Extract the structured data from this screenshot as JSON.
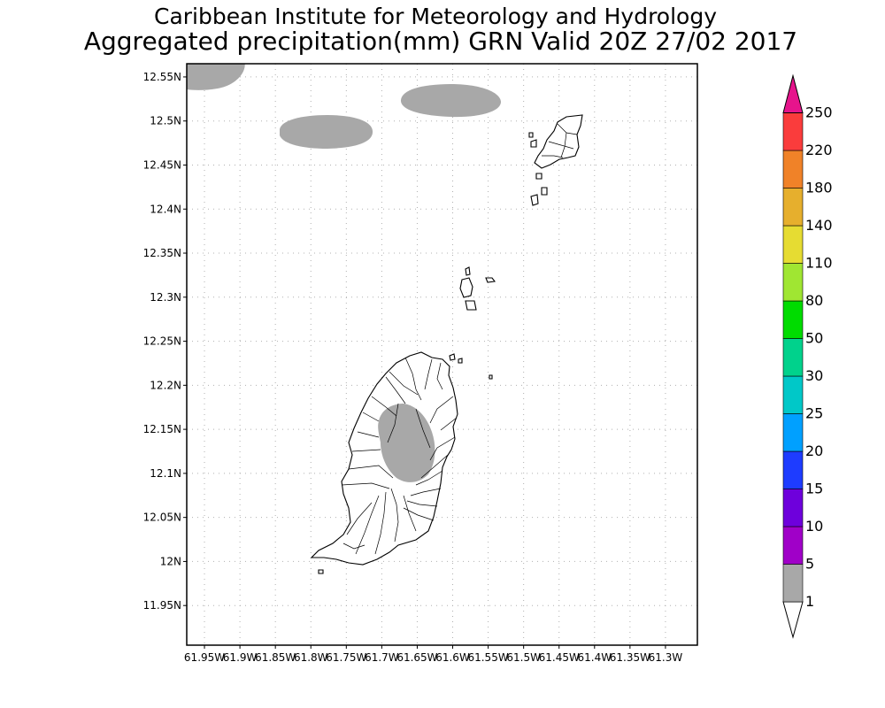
{
  "title": {
    "line1": "Caribbean Institute for Meteorology and Hydrology",
    "line2": "Aggregated precipitation(mm) GRN Valid 20Z 27/02 2017"
  },
  "map": {
    "lon_range": [
      -61.975,
      -61.255
    ],
    "lat_range": [
      11.905,
      12.565
    ],
    "lon_ticks": [
      {
        "value": -61.95,
        "label": "61.95W"
      },
      {
        "value": -61.9,
        "label": "61.9W"
      },
      {
        "value": -61.85,
        "label": "61.85W"
      },
      {
        "value": -61.8,
        "label": "61.8W"
      },
      {
        "value": -61.75,
        "label": "61.75W"
      },
      {
        "value": -61.7,
        "label": "61.7W"
      },
      {
        "value": -61.65,
        "label": "61.65W"
      },
      {
        "value": -61.6,
        "label": "61.6W"
      },
      {
        "value": -61.55,
        "label": "61.55W"
      },
      {
        "value": -61.5,
        "label": "61.5W"
      },
      {
        "value": -61.45,
        "label": "61.45W"
      },
      {
        "value": -61.4,
        "label": "61.4W"
      },
      {
        "value": -61.35,
        "label": "61.35W"
      },
      {
        "value": -61.3,
        "label": "61.3W"
      }
    ],
    "lat_ticks": [
      {
        "value": 12.55,
        "label": "12.55N"
      },
      {
        "value": 12.5,
        "label": "12.5N"
      },
      {
        "value": 12.45,
        "label": "12.45N"
      },
      {
        "value": 12.4,
        "label": "12.4N"
      },
      {
        "value": 12.35,
        "label": "12.35N"
      },
      {
        "value": 12.3,
        "label": "12.3N"
      },
      {
        "value": 12.25,
        "label": "12.25N"
      },
      {
        "value": 12.2,
        "label": "12.2N"
      },
      {
        "value": 12.15,
        "label": "12.15N"
      },
      {
        "value": 12.1,
        "label": "12.1N"
      },
      {
        "value": 12.05,
        "label": "12.05N"
      },
      {
        "value": 12.0,
        "label": "12N"
      },
      {
        "value": 11.95,
        "label": "11.95N"
      }
    ],
    "grid": true,
    "rain_color": "#a8a8a8"
  },
  "legend": {
    "placement": "right",
    "bins": [
      {
        "label": "1",
        "color": "#ffffff"
      },
      {
        "label": "5",
        "color": "#a8a8a8"
      },
      {
        "label": "10",
        "color": "#a000c8"
      },
      {
        "label": "15",
        "color": "#6e00dc"
      },
      {
        "label": "20",
        "color": "#1e3cff"
      },
      {
        "label": "25",
        "color": "#00a0ff"
      },
      {
        "label": "30",
        "color": "#00c8c8"
      },
      {
        "label": "50",
        "color": "#00d28c"
      },
      {
        "label": "80",
        "color": "#00dc00"
      },
      {
        "label": "110",
        "color": "#a0e632"
      },
      {
        "label": "140",
        "color": "#e6dc32"
      },
      {
        "label": "180",
        "color": "#e6af2d"
      },
      {
        "label": "220",
        "color": "#f08228"
      },
      {
        "label": "250",
        "color": "#fa3c3c"
      }
    ],
    "top_color": "#e6148c"
  }
}
